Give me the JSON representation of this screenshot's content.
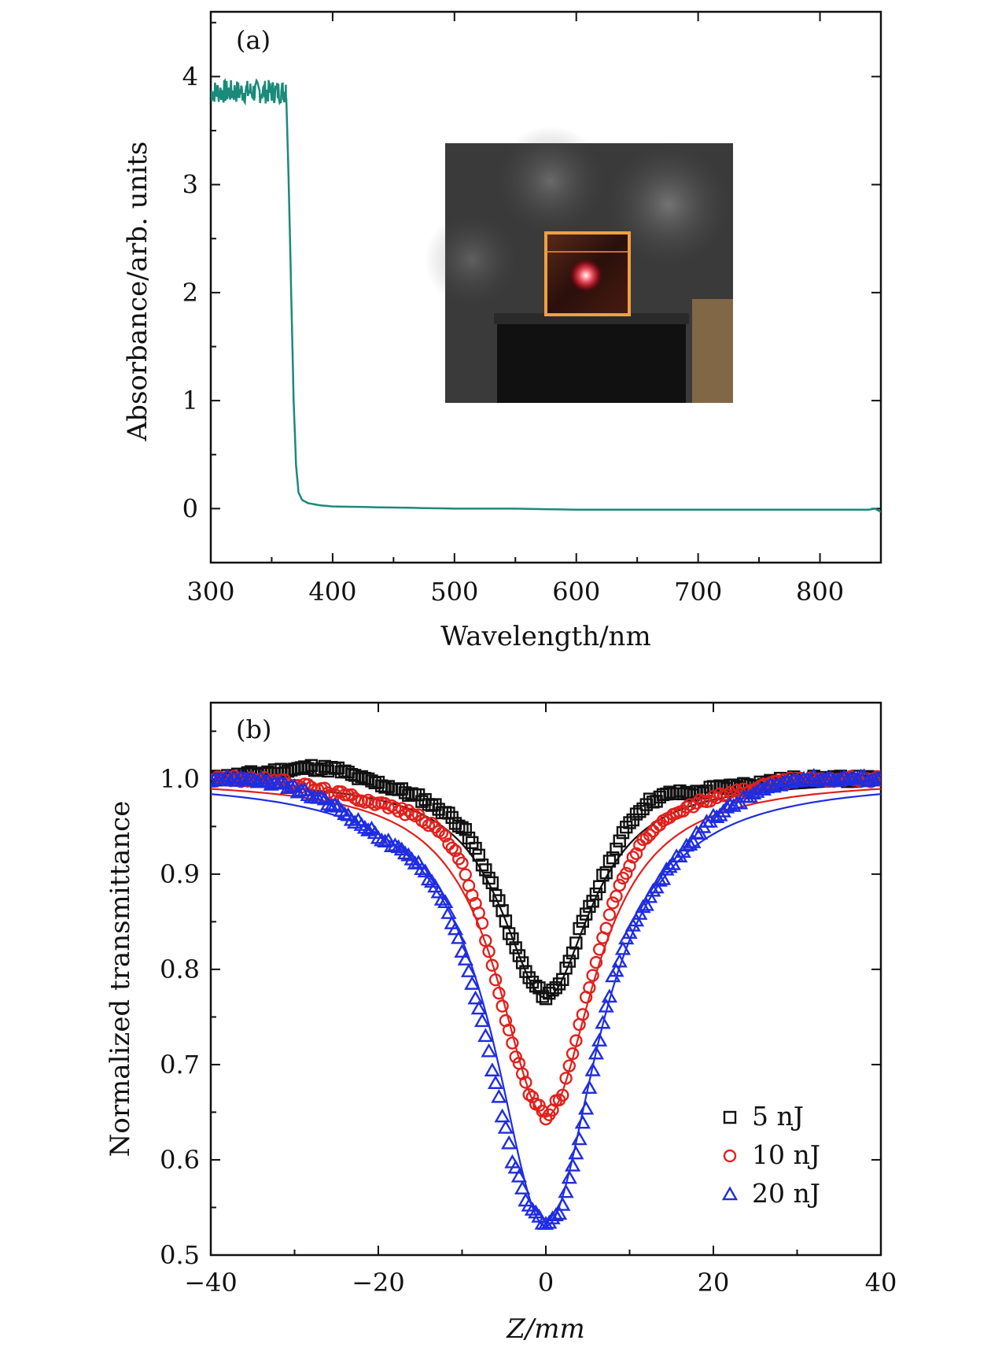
{
  "chart_data": [
    {
      "type": "line",
      "panel_label": "(a)",
      "xlabel": "Wavelength/nm",
      "ylabel": "Absorbance/arb. units",
      "xlim": [
        300,
        850
      ],
      "ylim": [
        -0.5,
        4.6
      ],
      "xticks": [
        300,
        400,
        500,
        600,
        700,
        800
      ],
      "yticks": [
        0,
        1,
        2,
        3,
        4
      ],
      "series": [
        {
          "name": "absorbance",
          "color": "#1a8a7a",
          "x": [
            300,
            305,
            310,
            315,
            320,
            325,
            330,
            335,
            340,
            345,
            350,
            355,
            360,
            362,
            364,
            366,
            368,
            370,
            372,
            375,
            380,
            390,
            400,
            450,
            500,
            550,
            600,
            650,
            700,
            750,
            800,
            840,
            845,
            850
          ],
          "y": [
            3.9,
            3.95,
            3.85,
            3.95,
            3.8,
            3.98,
            3.85,
            3.95,
            3.78,
            3.95,
            3.82,
            3.97,
            3.88,
            3.8,
            3.0,
            2.0,
            1.0,
            0.4,
            0.15,
            0.08,
            0.05,
            0.03,
            0.02,
            0.01,
            0.0,
            0.0,
            -0.01,
            -0.01,
            -0.01,
            -0.01,
            -0.01,
            -0.01,
            0.0,
            -0.03
          ]
        }
      ],
      "inset": "photo of an orange crystal cube with a red laser spot on a black stand"
    },
    {
      "type": "scatter",
      "panel_label": "(b)",
      "xlabel": "Z/mm",
      "ylabel": "Normalized transmittance",
      "xlim": [
        -40,
        40
      ],
      "ylim": [
        0.5,
        1.08
      ],
      "xticks": [
        -40,
        -20,
        0,
        20,
        40
      ],
      "xtick_labels": [
        "−40",
        "−20",
        "0",
        "20",
        "40"
      ],
      "yticks": [
        0.5,
        0.6,
        0.7,
        0.8,
        0.9,
        1.0
      ],
      "ytick_labels": [
        "0.5",
        "0.6",
        "0.7",
        "0.8",
        "0.9",
        "1.0"
      ],
      "legend_position": "bottom-right",
      "series": [
        {
          "name": "5 nJ",
          "marker": "square",
          "color": "#111111",
          "fit": {
            "dip": 0.23,
            "width_mm": 6.5
          },
          "x": [
            -40,
            -35,
            -30,
            -28,
            -25,
            -22,
            -20,
            -18,
            -15,
            -12,
            -10,
            -8,
            -6,
            -4,
            -2,
            0,
            2,
            4,
            6,
            8,
            10,
            12,
            15,
            18,
            20,
            25,
            30,
            35,
            40
          ],
          "y": [
            1.0,
            1.005,
            1.01,
            1.012,
            1.01,
            1.0,
            0.995,
            0.99,
            0.98,
            0.965,
            0.95,
            0.92,
            0.88,
            0.83,
            0.79,
            0.77,
            0.79,
            0.84,
            0.88,
            0.92,
            0.955,
            0.975,
            0.985,
            0.985,
            0.99,
            0.995,
            1.0,
            1.0,
            1.0
          ]
        },
        {
          "name": "10 nJ",
          "marker": "circle",
          "color": "#e0201c",
          "fit": {
            "dip": 0.355,
            "width_mm": 7.0
          },
          "x": [
            -40,
            -35,
            -30,
            -25,
            -20,
            -15,
            -12,
            -10,
            -8,
            -6,
            -4,
            -2,
            0,
            2,
            4,
            6,
            8,
            10,
            12,
            15,
            18,
            20,
            25,
            30,
            35,
            40
          ],
          "y": [
            1.0,
            1.0,
            0.995,
            0.985,
            0.975,
            0.96,
            0.94,
            0.91,
            0.86,
            0.79,
            0.72,
            0.67,
            0.645,
            0.67,
            0.74,
            0.81,
            0.87,
            0.91,
            0.94,
            0.96,
            0.975,
            0.98,
            0.99,
            1.0,
            1.0,
            1.0
          ]
        },
        {
          "name": "20 nJ",
          "marker": "triangle",
          "color": "#1f2de0",
          "fit": {
            "dip": 0.47,
            "width_mm": 7.5
          },
          "x": [
            -40,
            -35,
            -30,
            -25,
            -20,
            -15,
            -12,
            -10,
            -8,
            -6,
            -4,
            -2,
            0,
            2,
            4,
            6,
            8,
            10,
            12,
            15,
            18,
            20,
            25,
            30,
            35,
            40
          ],
          "y": [
            1.0,
            1.0,
            0.99,
            0.97,
            0.94,
            0.91,
            0.87,
            0.82,
            0.76,
            0.68,
            0.6,
            0.55,
            0.53,
            0.55,
            0.62,
            0.71,
            0.79,
            0.84,
            0.87,
            0.91,
            0.94,
            0.96,
            0.985,
            1.0,
            1.0,
            1.0
          ]
        }
      ]
    }
  ]
}
